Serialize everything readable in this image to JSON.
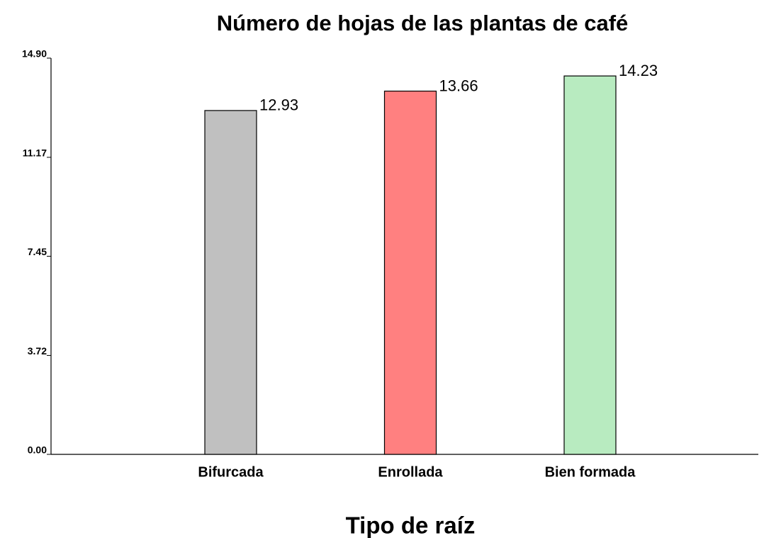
{
  "chart_data": {
    "type": "bar",
    "title": "Número de hojas de las plantas de café",
    "x_label": "Tipo de raíz",
    "categories": [
      "Bifurcada",
      "Enrollada",
      "Bien formada"
    ],
    "values": [
      12.93,
      13.66,
      14.23
    ],
    "colors": [
      "#c0c0c0",
      "#ff8080",
      "#b8ebc0"
    ],
    "ylim": [
      0,
      14.9
    ],
    "yticks": [
      {
        "value": 0,
        "label": "0.00"
      },
      3.72,
      7.45,
      11.17,
      {
        "value": 14.9,
        "label": "14.90"
      }
    ],
    "grid": false
  }
}
